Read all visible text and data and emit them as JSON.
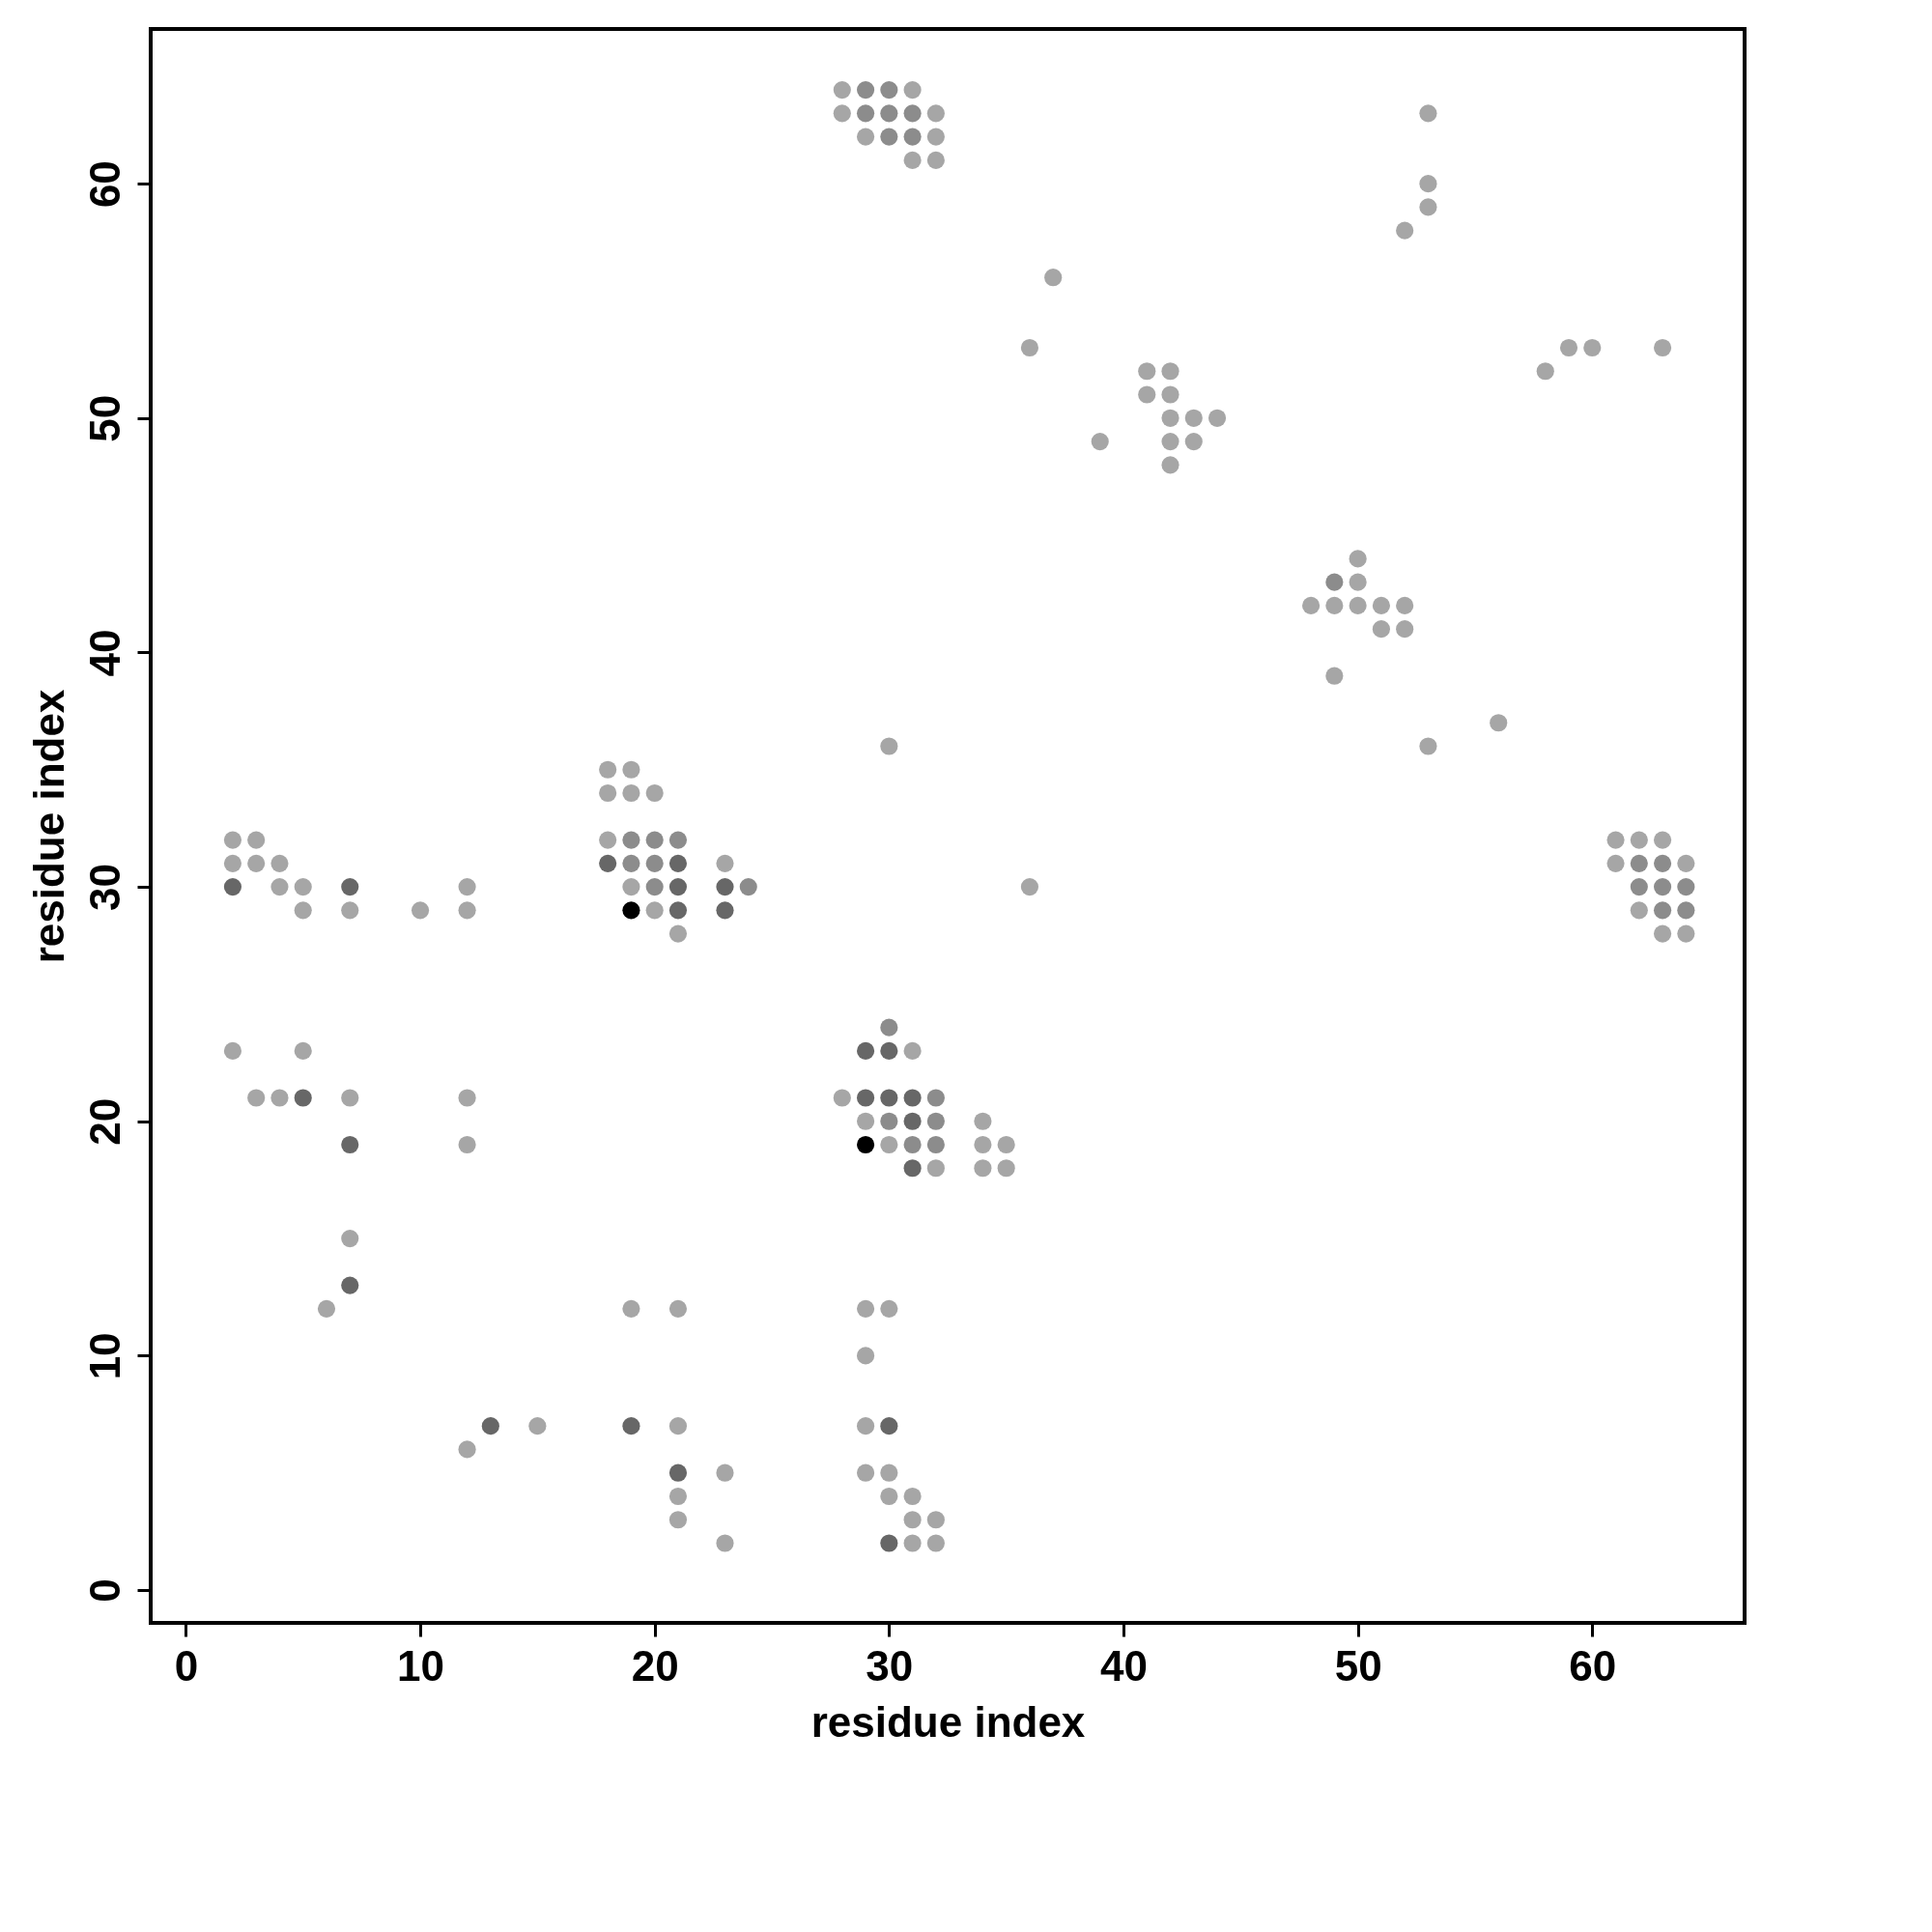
{
  "chart_data": {
    "type": "scatter",
    "xlabel": "residue index",
    "ylabel": "residue index",
    "xlim": [
      -1.5,
      66.5
    ],
    "ylim": [
      -1.4,
      66.6
    ],
    "xticks": [
      0,
      10,
      20,
      30,
      40,
      50,
      60
    ],
    "yticks": [
      0,
      10,
      20,
      30,
      40,
      50,
      60
    ],
    "grid": false,
    "legend": false,
    "marker": "circle",
    "series": [
      {
        "color": "#a6a6a6",
        "x": [
          28,
          31,
          28,
          32,
          29,
          32,
          31,
          32,
          53,
          53,
          53,
          52,
          37,
          36,
          41,
          42,
          41,
          42,
          42,
          43,
          44,
          39,
          42,
          43,
          42,
          58,
          59,
          60,
          63,
          50,
          50,
          48,
          49,
          50,
          51,
          52,
          51,
          52,
          49,
          56,
          53,
          30,
          36,
          61,
          62,
          63,
          61,
          64,
          62,
          63,
          64,
          18,
          19,
          18,
          19,
          20,
          18,
          23,
          19,
          20,
          21,
          2,
          3,
          2,
          3,
          4,
          4,
          5,
          5,
          7,
          2,
          5,
          3,
          4,
          7,
          10,
          12,
          12,
          12,
          12,
          7,
          6,
          31,
          28,
          29,
          34,
          30,
          34,
          35,
          32,
          34,
          35,
          21,
          21,
          21,
          23,
          23,
          29,
          29,
          30,
          30,
          31,
          31,
          32,
          31,
          32,
          12,
          15,
          19,
          21,
          29,
          30,
          29
        ],
        "values": [
          64,
          64,
          63,
          63,
          62,
          62,
          61,
          61,
          63,
          60,
          59,
          58,
          56,
          53,
          52,
          52,
          51,
          51,
          50,
          50,
          50,
          49,
          49,
          49,
          48,
          52,
          53,
          53,
          53,
          44,
          43,
          42,
          42,
          42,
          42,
          42,
          41,
          41,
          39,
          37,
          36,
          36,
          30,
          32,
          32,
          32,
          31,
          31,
          29,
          28,
          28,
          35,
          35,
          34,
          34,
          34,
          32,
          31,
          30,
          29,
          28,
          32,
          32,
          31,
          31,
          31,
          30,
          30,
          29,
          29,
          23,
          23,
          21,
          21,
          21,
          29,
          30,
          29,
          21,
          19,
          15,
          12,
          23,
          21,
          20,
          20,
          19,
          19,
          19,
          18,
          18,
          18,
          7,
          4,
          3,
          5,
          2,
          7,
          5,
          5,
          4,
          4,
          3,
          3,
          2,
          2,
          6,
          7,
          12,
          12,
          12,
          12,
          10
        ]
      },
      {
        "color": "#8c8c8c",
        "x": [
          29,
          30,
          29,
          30,
          31,
          30,
          31,
          49,
          62,
          63,
          62,
          63,
          64,
          63,
          64,
          19,
          20,
          21,
          19,
          20,
          20,
          24,
          30,
          32,
          30,
          32,
          31,
          32
        ],
        "values": [
          64,
          64,
          63,
          63,
          63,
          62,
          62,
          43,
          31,
          31,
          30,
          30,
          30,
          29,
          29,
          32,
          32,
          32,
          31,
          31,
          30,
          30,
          24,
          21,
          20,
          20,
          19,
          19
        ]
      },
      {
        "color": "#676767",
        "x": [
          18,
          21,
          21,
          23,
          21,
          23,
          2,
          7,
          5,
          7,
          7,
          29,
          30,
          29,
          30,
          31,
          31,
          31,
          21,
          30,
          30,
          19,
          13
        ],
        "values": [
          31,
          31,
          30,
          30,
          29,
          29,
          30,
          30,
          21,
          19,
          13,
          23,
          23,
          21,
          21,
          21,
          20,
          18,
          5,
          7,
          2,
          7,
          7
        ]
      },
      {
        "color": "#000000",
        "x": [
          19,
          29
        ],
        "values": [
          29,
          19
        ]
      }
    ]
  }
}
